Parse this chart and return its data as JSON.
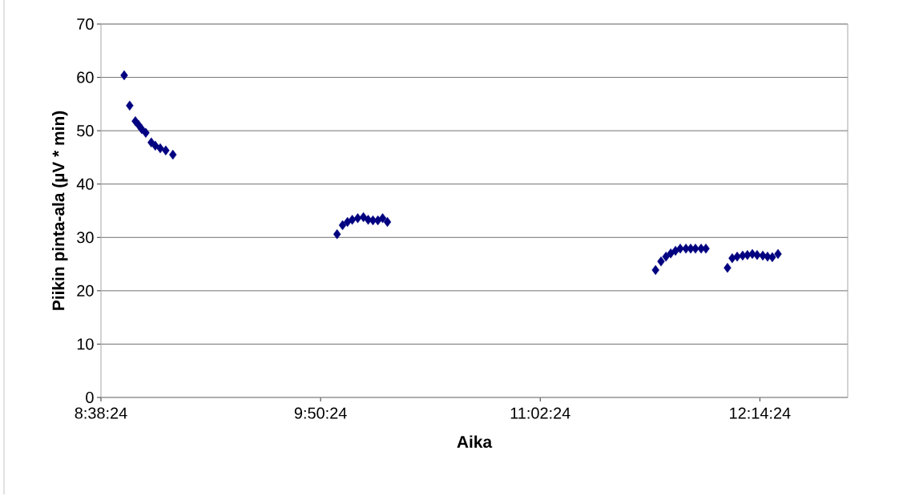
{
  "chart_data": {
    "type": "scatter",
    "xlabel": "Aika",
    "ylabel": "Piikin pinta-ala (µV * min)",
    "x": [
      8.767,
      8.797,
      8.828,
      8.845,
      8.863,
      8.885,
      8.915,
      8.937,
      8.964,
      8.994,
      9.033,
      9.93,
      9.96,
      9.987,
      10.013,
      10.043,
      10.074,
      10.1,
      10.126,
      10.153,
      10.179,
      10.205,
      11.67,
      11.7,
      11.727,
      11.753,
      11.779,
      11.805,
      11.836,
      11.862,
      11.888,
      11.919,
      11.945,
      12.063,
      12.089,
      12.116,
      12.146,
      12.172,
      12.199,
      12.225,
      12.256,
      12.282,
      12.308,
      12.339
    ],
    "values": [
      60.4,
      54.7,
      51.8,
      51.1,
      50.3,
      49.6,
      47.8,
      47.2,
      46.7,
      46.3,
      45.5,
      30.6,
      32.3,
      32.9,
      33.3,
      33.6,
      33.8,
      33.3,
      33.2,
      33.2,
      33.6,
      32.9,
      23.9,
      25.5,
      26.4,
      27.0,
      27.5,
      27.9,
      27.9,
      27.9,
      27.9,
      27.9,
      27.9,
      24.3,
      26.1,
      26.4,
      26.6,
      26.7,
      26.9,
      26.7,
      26.6,
      26.4,
      26.3,
      26.9
    ],
    "color": "#000080",
    "marker": "diamond",
    "xlim": [
      8.64,
      12.72
    ],
    "xticks": [
      {
        "value": 8.64,
        "label": "8:38:24"
      },
      {
        "value": 9.84,
        "label": "9:50:24"
      },
      {
        "value": 11.04,
        "label": "11:02:24"
      },
      {
        "value": 12.24,
        "label": "12:14:24"
      }
    ],
    "ylim": [
      0,
      70
    ],
    "yticks": [
      0,
      10,
      20,
      30,
      40,
      50,
      60,
      70
    ],
    "grid": "y"
  }
}
